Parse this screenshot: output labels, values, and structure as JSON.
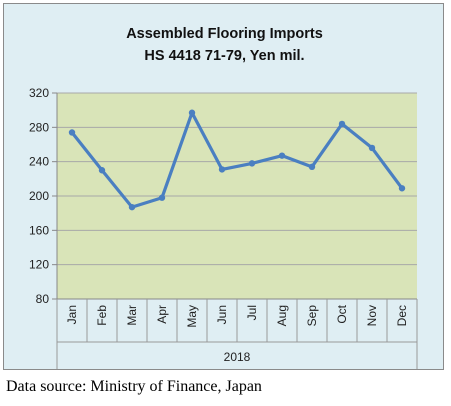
{
  "chart_data": {
    "type": "line",
    "title": "Assembled Flooring Imports",
    "subtitle": "HS 4418 71-79, Yen mil.",
    "categories": [
      "Jan",
      "Feb",
      "Mar",
      "Apr",
      "May",
      "Jun",
      "Jul",
      "Aug",
      "Sep",
      "Oct",
      "Nov",
      "Dec"
    ],
    "group_label": "2018",
    "values": [
      274,
      230,
      187,
      198,
      297,
      231,
      238,
      247,
      234,
      284,
      256,
      209
    ],
    "ylim": [
      80,
      320
    ],
    "yticks": [
      80,
      120,
      160,
      200,
      240,
      280,
      320
    ],
    "grid": true,
    "legend": "none",
    "colors": {
      "line": "#4a7fc1",
      "plot_bg": "#d9e4b8",
      "frame_bg": "#dfeef3",
      "grid": "#a8a8a8"
    }
  },
  "source_note": "Data source: Ministry of Finance, Japan"
}
